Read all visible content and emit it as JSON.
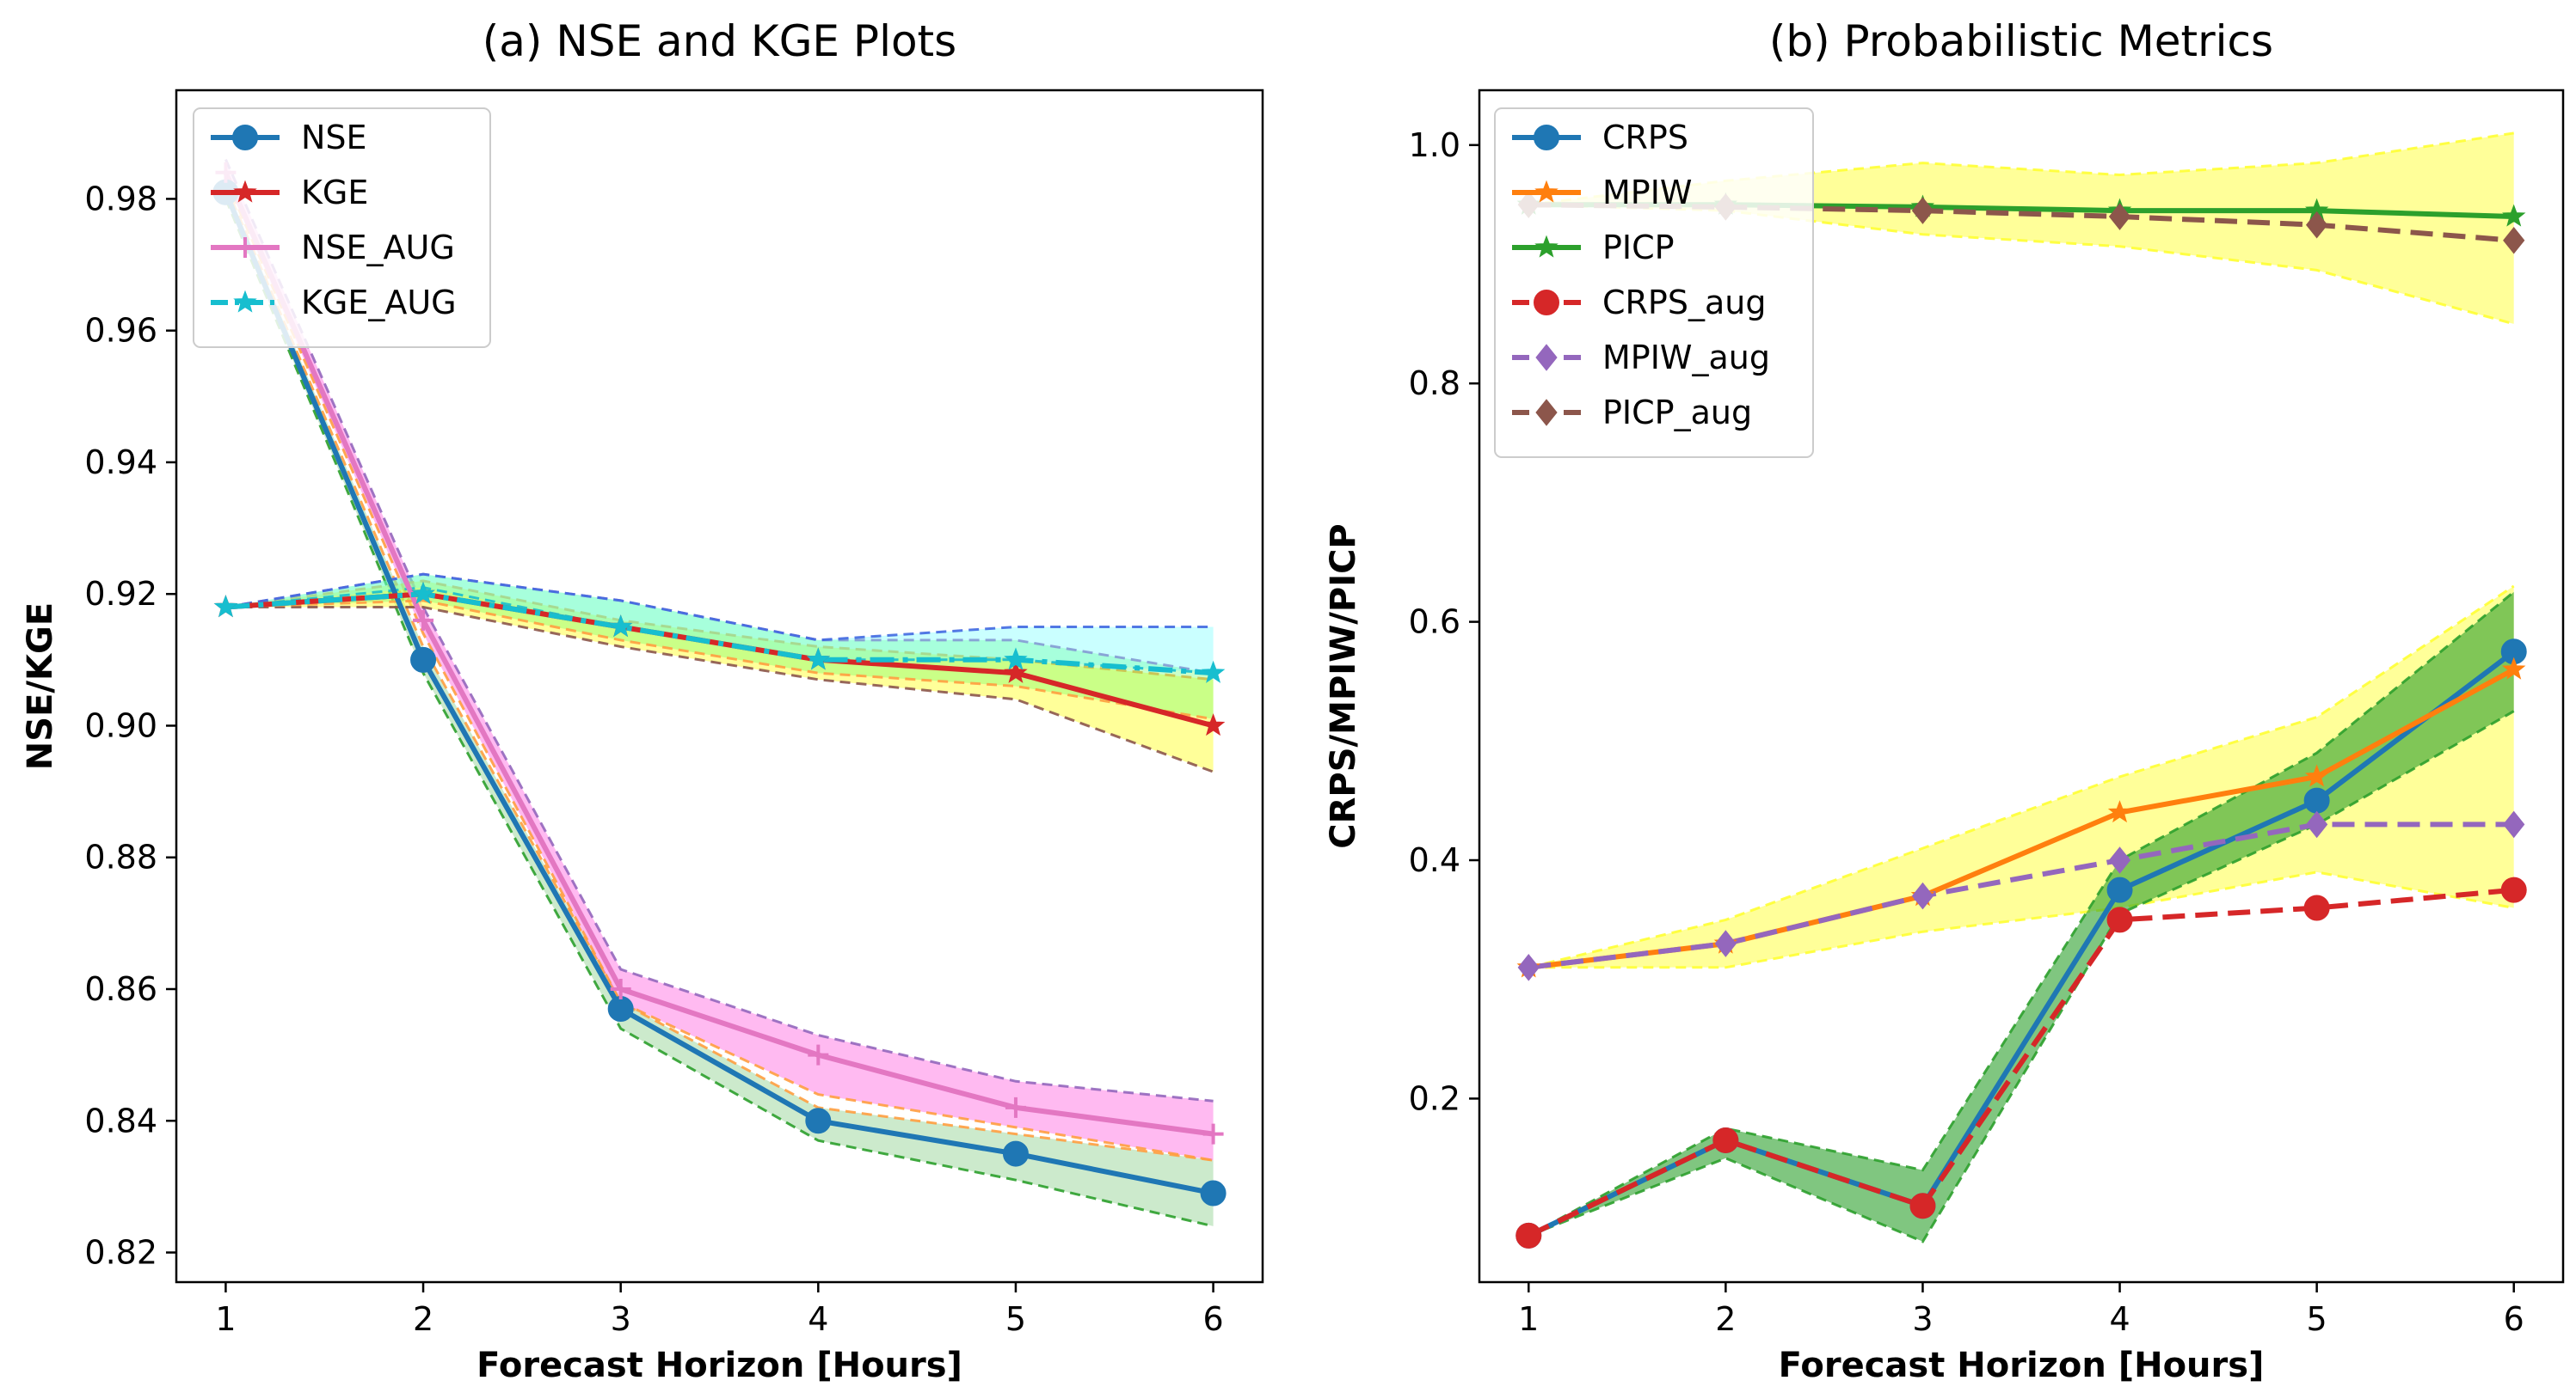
{
  "chart_data": [
    {
      "type": "line",
      "title": "(a) NSE and KGE Plots",
      "xlabel": "Forecast Horizon [Hours]",
      "ylabel": "NSE/KGE",
      "x": [
        1,
        2,
        3,
        4,
        5,
        6
      ],
      "xlim": [
        0.75,
        6.25
      ],
      "ylim": [
        0.8155,
        0.9965
      ],
      "xticks": [
        "1",
        "2",
        "3",
        "4",
        "5",
        "6"
      ],
      "yticks": [
        "0.82",
        "0.84",
        "0.86",
        "0.88",
        "0.90",
        "0.92",
        "0.94",
        "0.96",
        "0.98"
      ],
      "ytick_values": [
        0.82,
        0.84,
        0.86,
        0.88,
        0.9,
        0.92,
        0.94,
        0.96,
        0.98
      ],
      "legend_position": "upper-left",
      "bands": [
        {
          "name": "NSE band",
          "color": "#8fd18f",
          "opacity": 0.45,
          "lower": [
            0.98,
            0.908,
            0.854,
            0.837,
            0.831,
            0.824
          ],
          "upper": [
            0.982,
            0.912,
            0.858,
            0.842,
            0.838,
            0.834
          ],
          "edge_lower": "#2ca02c",
          "edge_upper": "#ff9f40"
        },
        {
          "name": "NSE_AUG band",
          "color": "#ff66e0",
          "opacity": 0.45,
          "lower": [
            0.983,
            0.914,
            0.858,
            0.844,
            0.839,
            0.834
          ],
          "upper": [
            0.986,
            0.918,
            0.863,
            0.853,
            0.846,
            0.843
          ],
          "edge_lower": "#ff9f40",
          "edge_upper": "#9467bd"
        },
        {
          "name": "KGE band",
          "color": "#ffff33",
          "opacity": 0.5,
          "lower": [
            0.918,
            0.918,
            0.912,
            0.907,
            0.904,
            0.893
          ],
          "upper": [
            0.918,
            0.922,
            0.916,
            0.912,
            0.91,
            0.907
          ],
          "edge_lower": "#8c564b",
          "edge_upper": "#ff9f40"
        },
        {
          "name": "KGE_AUG band",
          "color": "#66ff66",
          "opacity": 0.35,
          "lower": [
            0.918,
            0.919,
            0.913,
            0.908,
            0.906,
            0.901
          ],
          "upper": [
            0.918,
            0.923,
            0.919,
            0.913,
            0.913,
            0.908
          ],
          "edge_lower": "#ff9f40",
          "edge_upper": "#9467bd"
        },
        {
          "name": "KGE_AUG upper band",
          "color": "#66ffff",
          "opacity": 0.35,
          "lower": [
            0.918,
            0.921,
            0.915,
            0.91,
            0.91,
            0.908
          ],
          "upper": [
            0.918,
            0.923,
            0.919,
            0.913,
            0.915,
            0.915
          ],
          "edge_lower": "#17becf",
          "edge_upper": "#4169e1"
        }
      ],
      "series": [
        {
          "name": "NSE",
          "values": [
            0.981,
            0.91,
            0.857,
            0.84,
            0.835,
            0.829
          ],
          "color": "#1f77b4",
          "marker": "circle",
          "dash": "solid"
        },
        {
          "name": "KGE",
          "values": [
            0.918,
            0.92,
            0.915,
            0.91,
            0.908,
            0.9
          ],
          "color": "#d62728",
          "marker": "star",
          "dash": "solid"
        },
        {
          "name": "NSE_AUG",
          "values": [
            0.984,
            0.916,
            0.86,
            0.85,
            0.842,
            0.838
          ],
          "color": "#e377c2",
          "marker": "plus",
          "dash": "solid"
        },
        {
          "name": "KGE_AUG",
          "values": [
            0.918,
            0.92,
            0.915,
            0.91,
            0.91,
            0.908
          ],
          "color": "#17becf",
          "marker": "star",
          "dash": "dashdot"
        }
      ],
      "legend": [
        "NSE",
        "KGE",
        "NSE_AUG",
        "KGE_AUG"
      ]
    },
    {
      "type": "line",
      "title": "(b) Probabilistic Metrics",
      "xlabel": "Forecast Horizon [Hours]",
      "ylabel": "CRPS/MPIW/PICP",
      "x": [
        1,
        2,
        3,
        4,
        5,
        6
      ],
      "xlim": [
        0.75,
        6.25
      ],
      "ylim": [
        0.046,
        1.046
      ],
      "xticks": [
        "1",
        "2",
        "3",
        "4",
        "5",
        "6"
      ],
      "yticks": [
        "0.2",
        "0.4",
        "0.6",
        "0.8",
        "1.0"
      ],
      "ytick_values": [
        0.2,
        0.4,
        0.6,
        0.8,
        1.0
      ],
      "legend_position": "upper-left",
      "bands": [
        {
          "name": "PICP band",
          "color": "#ffff33",
          "opacity": 0.5,
          "lower": [
            0.95,
            0.945,
            0.925,
            0.915,
            0.895,
            0.85
          ],
          "upper": [
            0.95,
            0.97,
            0.985,
            0.975,
            0.985,
            1.01
          ],
          "edge_lower": "#ffff33",
          "edge_upper": "#ffff33"
        },
        {
          "name": "MPIW band",
          "color": "#ffff33",
          "opacity": 0.5,
          "lower": [
            0.31,
            0.31,
            0.34,
            0.36,
            0.39,
            0.36
          ],
          "upper": [
            0.31,
            0.35,
            0.41,
            0.47,
            0.52,
            0.63
          ],
          "edge_lower": "#ffff33",
          "edge_upper": "#ffff33"
        },
        {
          "name": "CRPS band",
          "color": "#2ca02c",
          "opacity": 0.6,
          "lower": [
            0.085,
            0.15,
            0.08,
            0.355,
            0.43,
            0.525
          ],
          "upper": [
            0.085,
            0.175,
            0.14,
            0.4,
            0.49,
            0.625
          ],
          "edge_lower": "#2ca02c",
          "edge_upper": "#2ca02c"
        }
      ],
      "series": [
        {
          "name": "CRPS",
          "values": [
            0.085,
            0.165,
            0.11,
            0.375,
            0.45,
            0.575
          ],
          "color": "#1f77b4",
          "marker": "circle",
          "dash": "solid"
        },
        {
          "name": "MPIW",
          "values": [
            0.31,
            0.33,
            0.37,
            0.44,
            0.47,
            0.56
          ],
          "color": "#ff7f0e",
          "marker": "star",
          "dash": "solid"
        },
        {
          "name": "PICP",
          "values": [
            0.95,
            0.95,
            0.948,
            0.945,
            0.945,
            0.94
          ],
          "color": "#2ca02c",
          "marker": "star",
          "dash": "solid"
        },
        {
          "name": "CRPS_aug",
          "values": [
            0.085,
            0.165,
            0.11,
            0.35,
            0.36,
            0.375
          ],
          "color": "#d62728",
          "marker": "circle",
          "dash": "dashed"
        },
        {
          "name": "MPIW_aug",
          "values": [
            0.31,
            0.33,
            0.37,
            0.4,
            0.43,
            0.43
          ],
          "color": "#9467bd",
          "marker": "diamond",
          "dash": "dashed"
        },
        {
          "name": "PICP_aug",
          "values": [
            0.95,
            0.948,
            0.945,
            0.94,
            0.933,
            0.92
          ],
          "color": "#8c564b",
          "marker": "diamond",
          "dash": "dashed"
        }
      ],
      "legend": [
        "CRPS",
        "MPIW",
        "PICP",
        "CRPS_aug",
        "MPIW_aug",
        "PICP_aug"
      ]
    }
  ]
}
